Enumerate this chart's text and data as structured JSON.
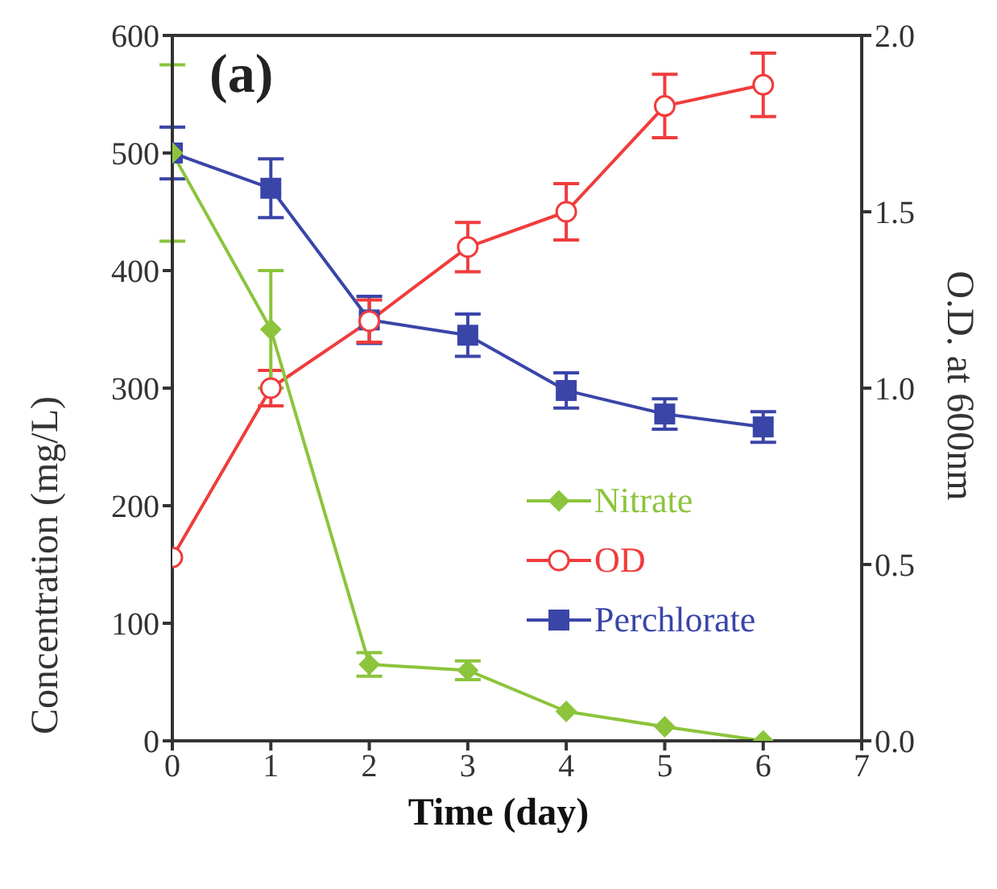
{
  "chart_data": {
    "type": "line",
    "xlabel": "Time (day)",
    "ylabel": "Concentration (mg/L)",
    "y2label": "O.D. at 600nm",
    "annotations": [
      "(a)"
    ],
    "x": [
      0,
      1,
      2,
      3,
      4,
      5,
      6
    ],
    "series": [
      {
        "name": "Nitrate",
        "color": "#8cc43c",
        "marker": "diamond",
        "values": [
          500,
          350,
          65,
          60,
          25,
          12,
          0
        ],
        "errors": [
          75,
          50,
          10,
          8,
          null,
          null,
          null
        ]
      },
      {
        "name": "OD",
        "color": "#f03c3c",
        "marker": "circle",
        "axis": "y2",
        "values": [
          0.52,
          1.0,
          1.19,
          1.4,
          1.5,
          1.8,
          1.86
        ],
        "errors": [
          null,
          0.05,
          0.06,
          0.07,
          0.08,
          0.09,
          0.09
        ]
      },
      {
        "name": "Perchlorate",
        "color": "#3a45a8",
        "marker": "square",
        "values": [
          500,
          470,
          358,
          345,
          298,
          278,
          267
        ],
        "errors": [
          22,
          25,
          20,
          18,
          15,
          13,
          13
        ]
      }
    ],
    "xlim": [
      0,
      7
    ],
    "xticks": [
      0,
      1,
      2,
      3,
      4,
      5,
      6,
      7
    ],
    "ylim": [
      0,
      600
    ],
    "yticks": [
      0,
      100,
      200,
      300,
      400,
      500,
      600
    ],
    "y2lim": [
      0,
      2
    ],
    "y2ticks": [
      {
        "value": 0,
        "label": "0.0"
      },
      {
        "value": 0.5,
        "label": "0.5"
      },
      {
        "value": 1,
        "label": "1.0"
      },
      {
        "value": 1.5,
        "label": "1.5"
      },
      {
        "value": 2,
        "label": "2.0"
      }
    ],
    "grid": false,
    "legend": "right"
  }
}
